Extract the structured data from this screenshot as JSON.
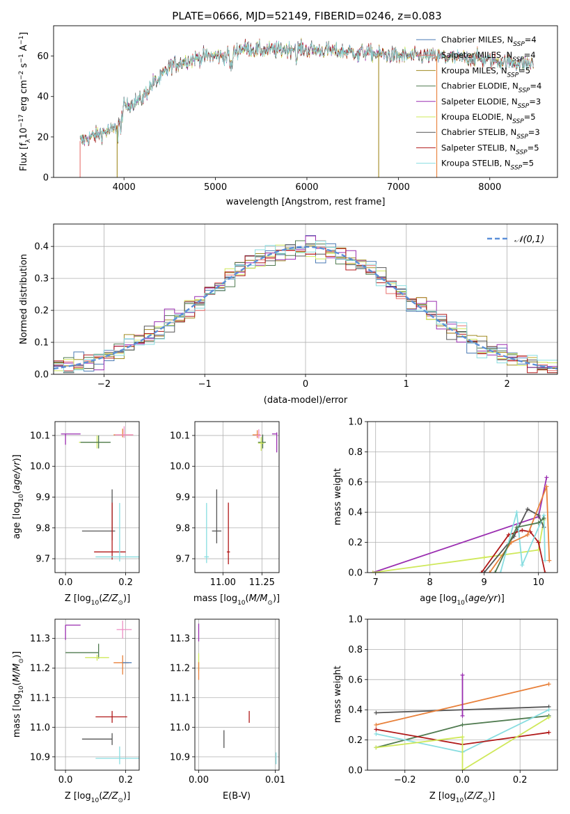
{
  "figure_title": "PLATE=0666, MJD=52149, FIBERID=0246, z=0.083",
  "colors": {
    "Chabrier MILES": "#4a7ab4",
    "Salpeter MILES": "#e8706e",
    "Kroupa MILES": "#a08a20",
    "Chabrier ELODIE": "#4f7a4f",
    "Salpeter ELODIE": "#9a2db0",
    "Kroupa ELODIE": "#cfe85a",
    "Chabrier STELIB": "#555555",
    "Salpeter STELIB": "#b01818",
    "Kroupa STELIB": "#88dde0",
    "Orange": "#e8803a",
    "Pink": "#ee8ec4",
    "Normal": "#5b8fd8"
  },
  "chart_data": [
    {
      "id": "spectrum",
      "type": "line",
      "xlabel": "wavelength [Angstrom, rest frame]",
      "ylabel": "Flux [f_λ10^-17 erg cm^-2 s^-1 A^-1]",
      "xlim": [
        3230,
        8740
      ],
      "ylim": [
        0,
        75
      ],
      "xticks": [
        4000,
        5000,
        6000,
        7000,
        8000
      ],
      "yticks": [
        0,
        20,
        40,
        60
      ],
      "grid": false,
      "legend_position": "top-right",
      "legend": [
        {
          "name": "Chabrier MILES",
          "nssp": "4"
        },
        {
          "name": "Salpeter MILES",
          "nssp": "4"
        },
        {
          "name": "Kroupa MILES",
          "nssp": "5"
        },
        {
          "name": "Chabrier ELODIE",
          "nssp": "4"
        },
        {
          "name": "Salpeter ELODIE",
          "nssp": "3"
        },
        {
          "name": "Kroupa ELODIE",
          "nssp": "5"
        },
        {
          "name": "Chabrier STELIB",
          "nssp": "3"
        },
        {
          "name": "Salpeter STELIB",
          "nssp": "5"
        },
        {
          "name": "Kroupa STELIB",
          "nssp": "5"
        }
      ],
      "continuum_knots": {
        "x": [
          3520,
          3700,
          3900,
          3960,
          4000,
          4200,
          4300,
          4400,
          4500,
          4700,
          4900,
          5100,
          5200,
          5300,
          5500,
          5700,
          5900,
          6000,
          6200,
          6400,
          6600,
          6800,
          7000,
          7200,
          7400,
          7600,
          7800,
          8000,
          8200,
          8480
        ],
        "y": [
          18,
          21,
          24,
          28,
          35,
          39,
          46,
          49,
          55,
          58,
          60,
          60,
          62,
          64,
          63,
          63,
          64,
          63,
          63,
          62,
          62,
          61,
          60,
          60,
          60,
          59,
          59,
          58,
          57,
          56
        ]
      },
      "drop_lines": [
        {
          "x": 3520,
          "series": "Salpeter MILES"
        },
        {
          "x": 3925,
          "series": "Kroupa MILES"
        },
        {
          "x": 6785,
          "series": "Kroupa MILES"
        },
        {
          "x": 7420,
          "series": "Orange"
        }
      ]
    },
    {
      "id": "residuals",
      "type": "step-histogram",
      "xlabel": "(data-model)/error",
      "ylabel": "Normed distribution",
      "xlim": [
        -2.5,
        2.5
      ],
      "ylim": [
        0,
        0.47
      ],
      "xticks": [
        -2,
        -1,
        0,
        1,
        2
      ],
      "yticks": [
        0.0,
        0.1,
        0.2,
        0.3,
        0.4
      ],
      "grid": true,
      "bin_width": 0.1,
      "legend_position": "top-right",
      "normal_label": "𝒩(0,1)"
    },
    {
      "id": "age-vs-Z",
      "type": "errorbar",
      "xlabel": "Z [log10(Z/Z⊙)]",
      "ylabel": "age  [log10(age/yr)]",
      "xlim": [
        -0.035,
        0.245
      ],
      "ylim": [
        9.655,
        10.145
      ],
      "xticks": [
        0.0,
        0.2
      ],
      "yticks": [
        9.7,
        9.8,
        9.9,
        10.0,
        10.1
      ],
      "grid": true,
      "points": [
        {
          "series": "Salpeter ELODIE",
          "x": 0.0,
          "xerr": [
            0.015,
            0.05
          ],
          "y": 10.105,
          "yerr": [
            0.035,
            0.0
          ]
        },
        {
          "series": "Kroupa ELODIE",
          "x": 0.105,
          "xerr": [
            0.06,
            0.04
          ],
          "y": 10.078,
          "yerr": [
            0.02,
            0.022
          ]
        },
        {
          "series": "Chabrier ELODIE",
          "x": 0.11,
          "xerr": [
            0.06,
            0.04
          ],
          "y": 10.078,
          "yerr": [
            0.02,
            0.022
          ]
        },
        {
          "series": "Orange",
          "x": 0.19,
          "xerr": [
            0.03,
            0.035
          ],
          "y": 10.102,
          "yerr": [
            0.008,
            0.02
          ]
        },
        {
          "series": "Pink",
          "x": 0.195,
          "xerr": [
            0.03,
            0.03
          ],
          "y": 10.102,
          "yerr": [
            0.01,
            0.028
          ]
        },
        {
          "series": "Chabrier STELIB",
          "x": 0.155,
          "xerr": [
            0.1,
            0.01
          ],
          "y": 9.79,
          "yerr": [
            0.03,
            0.135
          ]
        },
        {
          "series": "Salpeter STELIB",
          "x": 0.155,
          "xerr": [
            0.06,
            0.045
          ],
          "y": 9.722,
          "yerr": [
            0.025,
            0.16
          ]
        },
        {
          "series": "Kroupa STELIB",
          "x": 0.18,
          "xerr": [
            0.08,
            0.07
          ],
          "y": 9.706,
          "yerr": [
            0.015,
            0.175
          ]
        }
      ]
    },
    {
      "id": "age-vs-mass",
      "type": "errorbar",
      "xlabel": "mass [log10(M/M⊙)]",
      "ylabel": "",
      "xlim": [
        10.82,
        11.36
      ],
      "ylim": [
        9.655,
        10.145
      ],
      "xticks": [
        11.0,
        11.25
      ],
      "yticks": [
        9.7,
        9.8,
        9.9,
        10.0,
        10.1
      ],
      "grid": true,
      "points": [
        {
          "series": "Salpeter ELODIE",
          "x": 11.345,
          "xerr": [
            0.03,
            0.0
          ],
          "y": 10.105,
          "yerr": [
            0.06,
            0.005
          ]
        },
        {
          "series": "Orange",
          "x": 11.22,
          "xerr": [
            0.03,
            0.02
          ],
          "y": 10.102,
          "yerr": [
            0.01,
            0.015
          ]
        },
        {
          "series": "Pink",
          "x": 11.23,
          "xerr": [
            0.02,
            0.015
          ],
          "y": 10.1,
          "yerr": [
            0.01,
            0.02
          ]
        },
        {
          "series": "Chabrier ELODIE",
          "x": 11.255,
          "xerr": [
            0.03,
            0.02
          ],
          "y": 10.078,
          "yerr": [
            0.02,
            0.025
          ]
        },
        {
          "series": "Kroupa ELODIE",
          "x": 11.245,
          "xerr": [
            0.02,
            0.02
          ],
          "y": 10.075,
          "yerr": [
            0.025,
            0.02
          ]
        },
        {
          "series": "Chabrier STELIB",
          "x": 10.96,
          "xerr": [
            0.03,
            0.03
          ],
          "y": 9.79,
          "yerr": [
            0.04,
            0.135
          ]
        },
        {
          "series": "Salpeter STELIB",
          "x": 11.035,
          "xerr": [
            0.01,
            0.01
          ],
          "y": 9.722,
          "yerr": [
            0.04,
            0.16
          ]
        },
        {
          "series": "Kroupa STELIB",
          "x": 10.895,
          "xerr": [
            0.015,
            0.015
          ],
          "y": 9.706,
          "yerr": [
            0.02,
            0.175
          ]
        }
      ]
    },
    {
      "id": "massweight-vs-age",
      "type": "line",
      "xlabel": "age  [log10(age/yr)]",
      "ylabel": "mass weight",
      "xlim": [
        6.85,
        10.35
      ],
      "ylim": [
        0,
        1.0
      ],
      "xticks": [
        7,
        8,
        9,
        10
      ],
      "yticks": [
        0.0,
        0.2,
        0.4,
        0.6,
        0.8,
        1.0
      ],
      "grid": true,
      "series": [
        {
          "series": "Salpeter ELODIE",
          "x": [
            6.95,
            10.0,
            10.15
          ],
          "y": [
            0.0,
            0.37,
            0.63
          ]
        },
        {
          "series": "Kroupa ELODIE",
          "x": [
            6.95,
            9.0,
            10.0,
            10.1
          ],
          "y": [
            0.0,
            0.1,
            0.15,
            0.35
          ]
        },
        {
          "series": "Chabrier STELIB",
          "x": [
            9.0,
            9.55,
            9.8,
            10.0,
            10.1
          ],
          "y": [
            0.0,
            0.24,
            0.42,
            0.38,
            0.3
          ]
        },
        {
          "series": "Salpeter STELIB",
          "x": [
            8.95,
            9.45,
            9.7,
            9.85,
            10.0,
            10.12
          ],
          "y": [
            0.0,
            0.25,
            0.28,
            0.27,
            0.2,
            0.0
          ]
        },
        {
          "series": "Kroupa STELIB",
          "x": [
            9.3,
            9.6,
            9.7,
            10.1,
            10.12
          ],
          "y": [
            0.0,
            0.4,
            0.05,
            0.38,
            0.08
          ]
        },
        {
          "series": "Orange",
          "x": [
            9.1,
            9.5,
            9.8,
            10.15,
            10.2
          ],
          "y": [
            0.0,
            0.2,
            0.25,
            0.57,
            0.08
          ]
        },
        {
          "series": "Chabrier ELODIE",
          "x": [
            9.2,
            9.6,
            10.0,
            10.1
          ],
          "y": [
            0.0,
            0.3,
            0.33,
            0.36
          ]
        }
      ]
    },
    {
      "id": "mass-vs-Z",
      "type": "errorbar",
      "xlabel": "Z [log10(Z/Z⊙)]",
      "ylabel": "mass [log10(M/M⊙)]",
      "xlim": [
        -0.035,
        0.245
      ],
      "ylim": [
        10.855,
        11.365
      ],
      "xticks": [
        0.0,
        0.2
      ],
      "yticks": [
        10.9,
        11.0,
        11.1,
        11.2,
        11.3
      ],
      "grid": true,
      "points": [
        {
          "series": "Salpeter ELODIE",
          "x": 0.0,
          "xerr": [
            0.0,
            0.05
          ],
          "y": 11.345,
          "yerr": [
            0.05,
            0.0
          ]
        },
        {
          "series": "Pink",
          "x": 0.19,
          "xerr": [
            0.02,
            0.03
          ],
          "y": 11.33,
          "yerr": [
            0.03,
            0.03
          ]
        },
        {
          "series": "Chabrier ELODIE",
          "x": 0.11,
          "xerr": [
            0.11,
            0.0
          ],
          "y": 11.252,
          "yerr": [
            0.02,
            0.03
          ]
        },
        {
          "series": "Kroupa ELODIE",
          "x": 0.105,
          "xerr": [
            0.04,
            0.04
          ],
          "y": 11.235,
          "yerr": [
            0.01,
            0.01
          ]
        },
        {
          "series": "Orange",
          "x": 0.19,
          "xerr": [
            0.03,
            0.02
          ],
          "y": 11.218,
          "yerr": [
            0.04,
            0.025
          ]
        },
        {
          "series": "Chabrier MILES",
          "x": 0.19,
          "xerr": [
            0.0,
            0.03
          ],
          "y": 11.218,
          "yerr": [
            0.0,
            0.0
          ]
        },
        {
          "series": "Salpeter STELIB",
          "x": 0.155,
          "xerr": [
            0.055,
            0.05
          ],
          "y": 11.035,
          "yerr": [
            0.02,
            0.02
          ]
        },
        {
          "series": "Chabrier STELIB",
          "x": 0.155,
          "xerr": [
            0.1,
            0.0
          ],
          "y": 10.96,
          "yerr": [
            0.02,
            0.02
          ]
        },
        {
          "series": "Kroupa STELIB",
          "x": 0.18,
          "xerr": [
            0.08,
            0.07
          ],
          "y": 10.895,
          "yerr": [
            0.02,
            0.04
          ]
        }
      ]
    },
    {
      "id": "mass-vs-EBV",
      "type": "errorbar",
      "xlabel": "E(B-V)",
      "ylabel": "",
      "xlim": [
        -0.0005,
        0.0105
      ],
      "ylim": [
        10.855,
        11.365
      ],
      "xticks": [
        0.0,
        0.01
      ],
      "xtick_labels": [
        "0.00",
        "0.01"
      ],
      "yticks": [
        10.9,
        11.0,
        11.1,
        11.2,
        11.3
      ],
      "grid": true,
      "points": [
        {
          "series": "Salpeter ELODIE",
          "x": 0.0,
          "xerr": [
            0.0,
            0.0
          ],
          "y": 11.32,
          "yerr": [
            0.03,
            0.03
          ]
        },
        {
          "series": "Kroupa ELODIE",
          "x": 0.0,
          "xerr": [
            0.0,
            0.0
          ],
          "y": 11.22,
          "yerr": [
            0.03,
            0.03
          ]
        },
        {
          "series": "Orange",
          "x": 0.0,
          "xerr": [
            0.0,
            0.0
          ],
          "y": 11.19,
          "yerr": [
            0.03,
            0.03
          ]
        },
        {
          "series": "Salpeter STELIB",
          "x": 0.0066,
          "xerr": [
            0.0,
            0.0
          ],
          "y": 11.035,
          "yerr": [
            0.02,
            0.02
          ]
        },
        {
          "series": "Chabrier STELIB",
          "x": 0.0033,
          "xerr": [
            0.0,
            0.0
          ],
          "y": 10.96,
          "yerr": [
            0.03,
            0.03
          ]
        },
        {
          "series": "Kroupa STELIB",
          "x": 0.0101,
          "xerr": [
            0.0,
            0.0
          ],
          "y": 10.895,
          "yerr": [
            0.02,
            0.02
          ]
        }
      ]
    },
    {
      "id": "massweight-vs-Z",
      "type": "line",
      "xlabel": "Z [log10(Z/Z⊙)]",
      "ylabel": "mass weight",
      "xlim": [
        -0.33,
        0.33
      ],
      "ylim": [
        0,
        1.0
      ],
      "xticks": [
        -0.2,
        0.0,
        0.2
      ],
      "xtick_labels": [
        "−0.2",
        "0.0",
        "0.2"
      ],
      "yticks": [
        0.0,
        0.2,
        0.4,
        0.6,
        0.8,
        1.0
      ],
      "grid": true,
      "series": [
        {
          "series": "Chabrier STELIB",
          "x": [
            -0.3,
            0.3
          ],
          "y": [
            0.38,
            0.42
          ]
        },
        {
          "series": "Orange",
          "x": [
            -0.3,
            0.3
          ],
          "y": [
            0.3,
            0.57
          ]
        },
        {
          "series": "Salpeter ELODIE",
          "x": [
            0.0,
            0.0
          ],
          "y": [
            0.36,
            0.63
          ]
        },
        {
          "series": "Chabrier ELODIE",
          "x": [
            -0.3,
            0.0,
            0.3
          ],
          "y": [
            0.15,
            0.3,
            0.36
          ]
        },
        {
          "series": "Kroupa STELIB",
          "x": [
            -0.3,
            0.0,
            0.3
          ],
          "y": [
            0.24,
            0.12,
            0.4
          ]
        },
        {
          "series": "Salpeter STELIB",
          "x": [
            -0.3,
            0.0,
            0.3
          ],
          "y": [
            0.27,
            0.17,
            0.25
          ]
        },
        {
          "series": "Kroupa ELODIE",
          "x": [
            -0.3,
            0.0,
            0.0,
            0.3
          ],
          "y": [
            0.15,
            0.22,
            0.0,
            0.35
          ]
        }
      ]
    }
  ]
}
